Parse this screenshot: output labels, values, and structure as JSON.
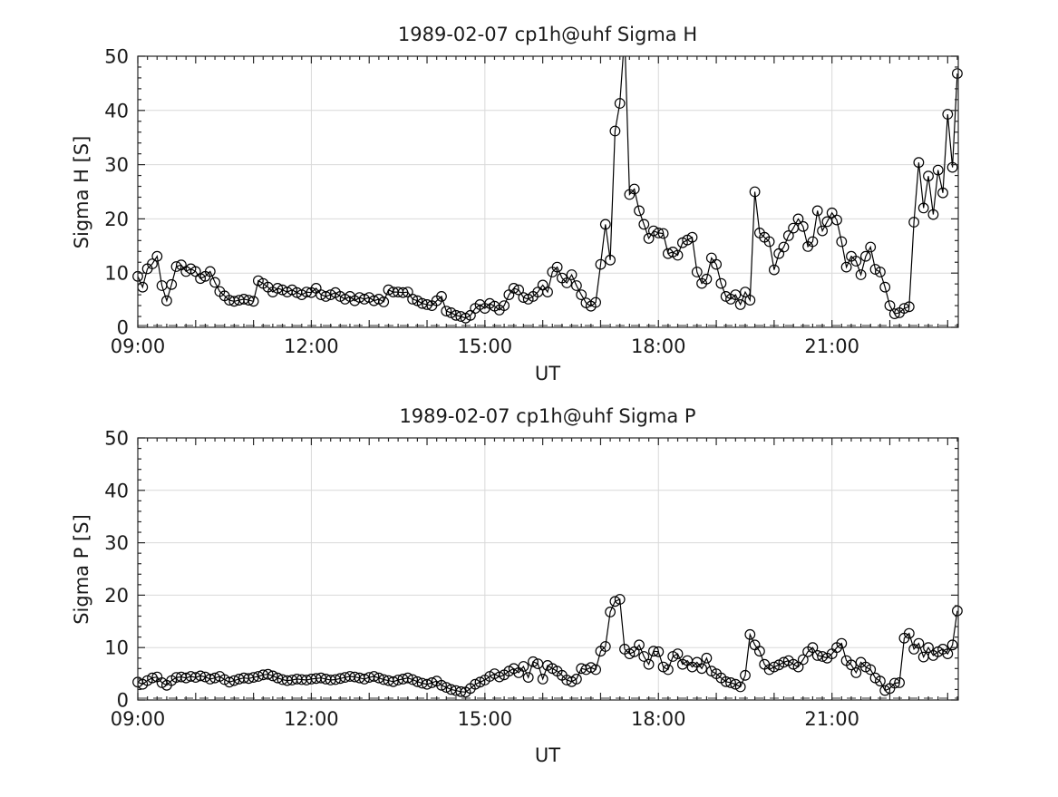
{
  "figure": {
    "background": "#ffffff",
    "x_axis_label": "UT",
    "styles": {
      "line_color": "#000000",
      "marker": "open-circle",
      "marker_radius": 5.3,
      "grid_color": "#d9d9d9",
      "zero_line_color": "#9a9a9a",
      "axis_color": "#262626",
      "text_color": "#1a1a1a"
    }
  },
  "chart_data": [
    {
      "type": "line",
      "id": "sigma-h",
      "title": "1989-02-07  cp1h@uhf Sigma H",
      "xlabel": "UT",
      "ylabel": "Sigma H [S]",
      "x_start": "09:00",
      "x_step_minutes": 5,
      "x_end": "23:10",
      "xlim": [
        "09:00",
        "23:11"
      ],
      "ylim": [
        0,
        50
      ],
      "yticks": [
        0,
        10,
        20,
        30,
        40,
        50
      ],
      "y_minor_step": 2,
      "x_minor_step_minutes": 10,
      "x_hour_tick_minutes": 60,
      "grid": true,
      "zero_line_dashed": true,
      "xticks": [
        {
          "minutes": 540,
          "label": "09:00"
        },
        {
          "minutes": 720,
          "label": "12:00"
        },
        {
          "minutes": 900,
          "label": "15:00"
        },
        {
          "minutes": 1080,
          "label": "18:00"
        },
        {
          "minutes": 1260,
          "label": "21:00"
        }
      ],
      "values": [
        9.4,
        7.4,
        10.8,
        11.7,
        13.1,
        7.7,
        4.9,
        7.9,
        11.2,
        11.5,
        10.3,
        10.8,
        10.3,
        9.0,
        9.4,
        10.3,
        8.3,
        6.6,
        5.8,
        5.0,
        4.8,
        5.0,
        5.2,
        5.0,
        4.8,
        8.6,
        8.1,
        7.4,
        6.5,
        7.2,
        6.9,
        6.5,
        6.9,
        6.4,
        6.0,
        6.5,
        6.4,
        7.2,
        6.0,
        5.7,
        6.0,
        6.4,
        5.7,
        5.2,
        5.7,
        4.9,
        5.5,
        5.2,
        5.5,
        4.9,
        5.2,
        4.7,
        6.9,
        6.5,
        6.5,
        6.4,
        6.5,
        5.2,
        4.9,
        4.4,
        4.2,
        4.0,
        4.9,
        5.7,
        3.0,
        2.7,
        2.2,
        2.0,
        1.7,
        2.2,
        3.5,
        4.2,
        3.5,
        4.4,
        3.9,
        3.2,
        4.0,
        6.0,
        7.2,
        6.9,
        5.5,
        5.2,
        5.7,
        6.5,
        7.8,
        6.5,
        10.2,
        11.1,
        9.1,
        8.2,
        9.7,
        7.7,
        6.0,
        4.5,
        3.9,
        4.6,
        11.6,
        19.0,
        12.4,
        36.2,
        41.3,
        54.0,
        24.5,
        25.5,
        21.5,
        19.0,
        16.4,
        17.8,
        17.4,
        17.3,
        13.6,
        13.9,
        13.3,
        15.6,
        16.1,
        16.6,
        10.2,
        8.1,
        8.9,
        12.8,
        11.6,
        8.1,
        5.7,
        5.2,
        6.0,
        4.2,
        6.5,
        5.0,
        25.0,
        17.4,
        16.6,
        15.8,
        10.6,
        13.6,
        14.8,
        16.9,
        18.3,
        20.0,
        18.6,
        14.9,
        15.8,
        21.5,
        17.8,
        19.5,
        21.1,
        19.8,
        15.8,
        11.1,
        13.1,
        12.2,
        9.7,
        13.1,
        14.8,
        10.7,
        10.2,
        7.4,
        4.0,
        2.5,
        2.7,
        3.5,
        3.8,
        19.4,
        30.4,
        22.0,
        27.9,
        20.8,
        29.0,
        24.8,
        39.3,
        29.5,
        46.8
      ]
    },
    {
      "type": "line",
      "id": "sigma-p",
      "title": "1989-02-07  cp1h@uhf Sigma P",
      "xlabel": "UT",
      "ylabel": "Sigma P [S]",
      "x_start": "09:00",
      "x_step_minutes": 5,
      "x_end": "23:10",
      "xlim": [
        "09:00",
        "23:11"
      ],
      "ylim": [
        0,
        50
      ],
      "yticks": [
        0,
        10,
        20,
        30,
        40,
        50
      ],
      "y_minor_step": 2,
      "x_minor_step_minutes": 10,
      "x_hour_tick_minutes": 60,
      "grid": true,
      "zero_line_dashed": true,
      "xticks": [
        {
          "minutes": 540,
          "label": "09:00"
        },
        {
          "minutes": 720,
          "label": "12:00"
        },
        {
          "minutes": 900,
          "label": "15:00"
        },
        {
          "minutes": 1080,
          "label": "18:00"
        },
        {
          "minutes": 1260,
          "label": "21:00"
        }
      ],
      "values": [
        3.4,
        3.0,
        3.7,
        4.2,
        4.4,
        3.3,
        2.8,
        3.7,
        4.3,
        4.4,
        4.2,
        4.5,
        4.3,
        4.6,
        4.4,
        4.0,
        4.2,
        4.5,
        3.9,
        3.4,
        3.7,
        4.0,
        4.2,
        4.1,
        4.3,
        4.5,
        4.8,
        4.9,
        4.6,
        4.2,
        3.9,
        3.7,
        3.8,
        4.0,
        3.9,
        3.8,
        4.0,
        4.1,
        4.2,
        4.0,
        3.8,
        3.9,
        4.1,
        4.3,
        4.5,
        4.4,
        4.2,
        4.0,
        4.3,
        4.5,
        4.2,
        3.9,
        3.7,
        3.5,
        3.8,
        4.0,
        4.2,
        3.9,
        3.5,
        3.2,
        3.0,
        3.3,
        3.6,
        2.8,
        2.4,
        2.0,
        1.8,
        1.6,
        1.5,
        2.2,
        3.0,
        3.4,
        3.8,
        4.5,
        5.0,
        4.4,
        4.8,
        5.5,
        6.0,
        5.2,
        6.4,
        4.3,
        7.3,
        6.9,
        4.0,
        6.6,
        6.0,
        5.5,
        4.7,
        3.8,
        3.5,
        4.0,
        6.0,
        5.8,
        6.2,
        5.8,
        9.3,
        10.2,
        16.8,
        18.8,
        19.2,
        9.7,
        8.8,
        9.2,
        10.5,
        8.3,
        6.8,
        9.3,
        9.2,
        6.3,
        5.8,
        8.3,
        8.8,
        6.8,
        7.5,
        6.3,
        7.2,
        6.0,
        8.0,
        5.5,
        5.0,
        4.2,
        3.5,
        3.3,
        3.0,
        2.5,
        4.7,
        12.5,
        10.5,
        9.3,
        6.8,
        5.8,
        6.3,
        6.7,
        7.2,
        7.5,
        6.8,
        6.3,
        7.7,
        9.2,
        10.0,
        8.5,
        8.3,
        8.0,
        8.8,
        10.0,
        10.8,
        7.5,
        6.7,
        5.2,
        7.2,
        6.3,
        5.8,
        4.2,
        3.6,
        1.8,
        2.2,
        3.2,
        3.3,
        11.8,
        12.7,
        9.7,
        10.8,
        8.2,
        10.0,
        8.5,
        9.2,
        9.7,
        8.8,
        10.5,
        17.0
      ]
    }
  ]
}
